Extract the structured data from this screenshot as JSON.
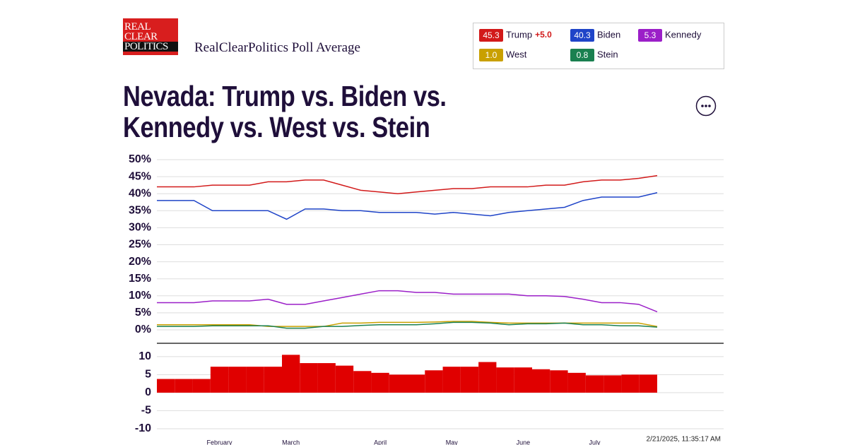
{
  "header": {
    "logo": [
      "REAL",
      "CLEAR",
      "POLITICS"
    ],
    "subtitle": "RealClearPolitics Poll Average",
    "timestamp": "2/21/2025, 11:35:17 AM"
  },
  "legend": [
    {
      "name": "Trump",
      "value": 45.3,
      "spread": "+5.0",
      "color": "#d21a1a"
    },
    {
      "name": "Biden",
      "value": 40.3,
      "color": "#1f44c8"
    },
    {
      "name": "Kennedy",
      "value": 5.3,
      "color": "#9b1fc8"
    },
    {
      "name": "West",
      "value": 1.0,
      "color": "#c9a000"
    },
    {
      "name": "Stein",
      "value": 0.8,
      "color": "#1a8050"
    }
  ],
  "chart_data": [
    {
      "type": "line",
      "title": "Nevada: Trump vs. Biden vs. Kennedy vs. West vs. Stein",
      "grid": true,
      "ylim": [
        0,
        50
      ],
      "yticks": [
        {
          "value": 0,
          "label": "0%"
        },
        {
          "value": 5,
          "label": "5%"
        },
        {
          "value": 10,
          "label": "10%"
        },
        {
          "value": 15,
          "label": "15%"
        },
        {
          "value": 20,
          "label": "20%"
        },
        {
          "value": 25,
          "label": "25%"
        },
        {
          "value": 30,
          "label": "30%"
        },
        {
          "value": 35,
          "label": "35%"
        },
        {
          "value": 40,
          "label": "40%"
        },
        {
          "value": 45,
          "label": "45%"
        },
        {
          "value": 50,
          "label": "50%"
        }
      ],
      "series": [
        {
          "name": "Trump",
          "color": "#d21a1a",
          "values": [
            42,
            42,
            42,
            42.5,
            42.5,
            42.5,
            43.5,
            43.5,
            44,
            44,
            42.5,
            41,
            40.5,
            40,
            40.5,
            41,
            41.5,
            41.5,
            42,
            42,
            42,
            42.5,
            42.5,
            43.5,
            44,
            44,
            44.5,
            45.3
          ]
        },
        {
          "name": "Biden",
          "color": "#1f44c8",
          "values": [
            38,
            38,
            38,
            35,
            35,
            35,
            35,
            32.5,
            35.5,
            35.5,
            35,
            35,
            34.5,
            34.5,
            34.5,
            34,
            34.5,
            34,
            33.5,
            34.5,
            35,
            35.5,
            36,
            38,
            39,
            39,
            39,
            40.3
          ]
        },
        {
          "name": "Kennedy",
          "color": "#9b1fc8",
          "values": [
            8,
            8,
            8,
            8.5,
            8.5,
            8.5,
            9,
            7.5,
            7.5,
            8.5,
            9.5,
            10.5,
            11.5,
            11.5,
            11,
            11,
            10.5,
            10.5,
            10.5,
            10.5,
            10,
            10,
            9.8,
            9,
            8,
            8,
            7.5,
            5.3
          ]
        },
        {
          "name": "West",
          "color": "#c9a000",
          "values": [
            1.5,
            1.5,
            1.5,
            1.5,
            1.5,
            1.5,
            1,
            1,
            1,
            1,
            2,
            2,
            2.2,
            2.2,
            2.2,
            2.3,
            2.5,
            2.5,
            2.2,
            2,
            2,
            2,
            2,
            2,
            2,
            2,
            2,
            1.0
          ]
        },
        {
          "name": "Stein",
          "color": "#1a8050",
          "values": [
            1,
            1,
            1,
            1.2,
            1.2,
            1.2,
            1.2,
            0.5,
            0.5,
            1,
            1,
            1.3,
            1.5,
            1.5,
            1.5,
            1.8,
            2.2,
            2.2,
            2,
            1.5,
            1.8,
            1.8,
            2,
            1.5,
            1.5,
            1.2,
            1.2,
            0.8
          ]
        }
      ]
    },
    {
      "type": "bar",
      "grid": true,
      "color": "#e00000",
      "categories": [
        null,
        null,
        null,
        "February",
        null,
        null,
        null,
        "March",
        null,
        null,
        null,
        null,
        "April",
        null,
        null,
        null,
        "May",
        null,
        null,
        null,
        "June",
        null,
        null,
        null,
        "July",
        null,
        null,
        null
      ],
      "values": [
        3.8,
        3.8,
        3.8,
        7.2,
        7.2,
        7.2,
        7.2,
        10.5,
        8.2,
        8.2,
        7.5,
        6,
        5.5,
        5,
        5,
        6.2,
        7.2,
        7.2,
        8.5,
        7,
        7,
        6.5,
        6.2,
        5.5,
        4.8,
        4.8,
        5,
        5
      ],
      "ylim": [
        -10.6,
        13.7
      ],
      "yticks": [
        -10,
        -5,
        0,
        5,
        10
      ]
    }
  ]
}
